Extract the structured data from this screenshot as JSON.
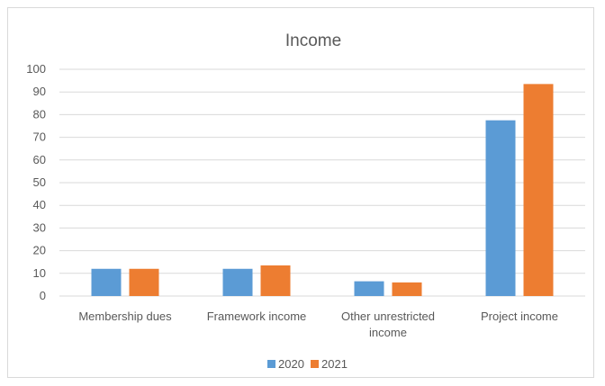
{
  "chart_data": {
    "type": "bar",
    "title": "Income",
    "categories": [
      [
        "Membership dues"
      ],
      [
        "Framework income"
      ],
      [
        "Other unrestricted",
        "income"
      ],
      [
        "Project income"
      ]
    ],
    "series": [
      {
        "name": "2020",
        "color": "#5b9bd5",
        "values": [
          12,
          12,
          6.5,
          77.5
        ]
      },
      {
        "name": "2021",
        "color": "#ed7d31",
        "values": [
          12,
          13.5,
          6,
          93.5
        ]
      }
    ],
    "ylim": [
      0,
      100
    ],
    "yticks": [
      0,
      10,
      20,
      30,
      40,
      50,
      60,
      70,
      80,
      90,
      100
    ],
    "grid": true,
    "gridColor": "#d9d9d9",
    "legend": "bottom"
  }
}
